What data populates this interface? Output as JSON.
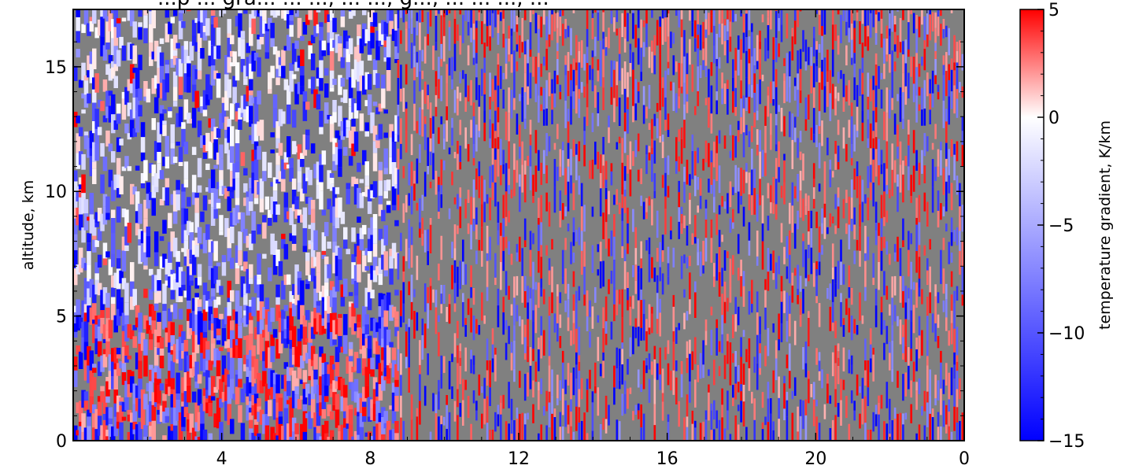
{
  "chart_data": {
    "type": "heatmap",
    "title": "...p ... gra... ... ...,  ... ...,  g...,  ... ... ...,  ...",
    "xlabel": "",
    "ylabel": "altitude, km",
    "colorbar_label": "temperature gradient, K/km",
    "x_ticks": [
      "4",
      "8",
      "12",
      "16",
      "20",
      "0"
    ],
    "y_ticks": [
      "0",
      "5",
      "10",
      "15"
    ],
    "colorbar_ticks": [
      "5",
      "0",
      "−5",
      "−10",
      "−15"
    ],
    "xlim": [
      0,
      24
    ],
    "ylim": [
      0,
      17.3
    ],
    "x_tick_values": [
      4,
      8,
      12,
      16,
      20,
      24
    ],
    "y_tick_values": [
      0,
      5,
      10,
      15
    ],
    "clim": [
      -15,
      5
    ],
    "colorbar_tick_values": [
      5,
      0,
      -5,
      -10,
      -15
    ],
    "colormap": "bwr",
    "background_color": "#808080",
    "colors": {
      "min": "#0000ff",
      "mid": "#ffffff",
      "max": "#ff0000"
    },
    "grid": false
  }
}
